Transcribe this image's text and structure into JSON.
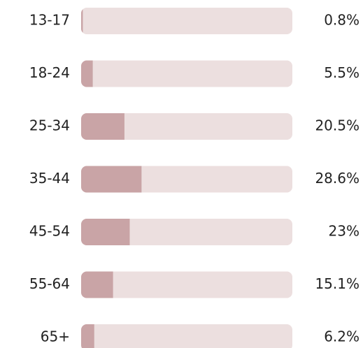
{
  "chart_data": {
    "type": "bar",
    "categories": [
      "13-17",
      "18-24",
      "25-34",
      "35-44",
      "45-54",
      "55-64",
      "65+"
    ],
    "values": [
      0.8,
      5.5,
      20.5,
      28.6,
      23,
      15.1,
      6.2
    ],
    "value_labels": [
      "0.8%",
      "5.5%",
      "20.5%",
      "28.6%",
      "23%",
      "15.1%",
      "6.2%"
    ],
    "xlim": [
      0,
      100
    ],
    "color": "#c9a4a6",
    "track_color": "#ecdfdf"
  }
}
